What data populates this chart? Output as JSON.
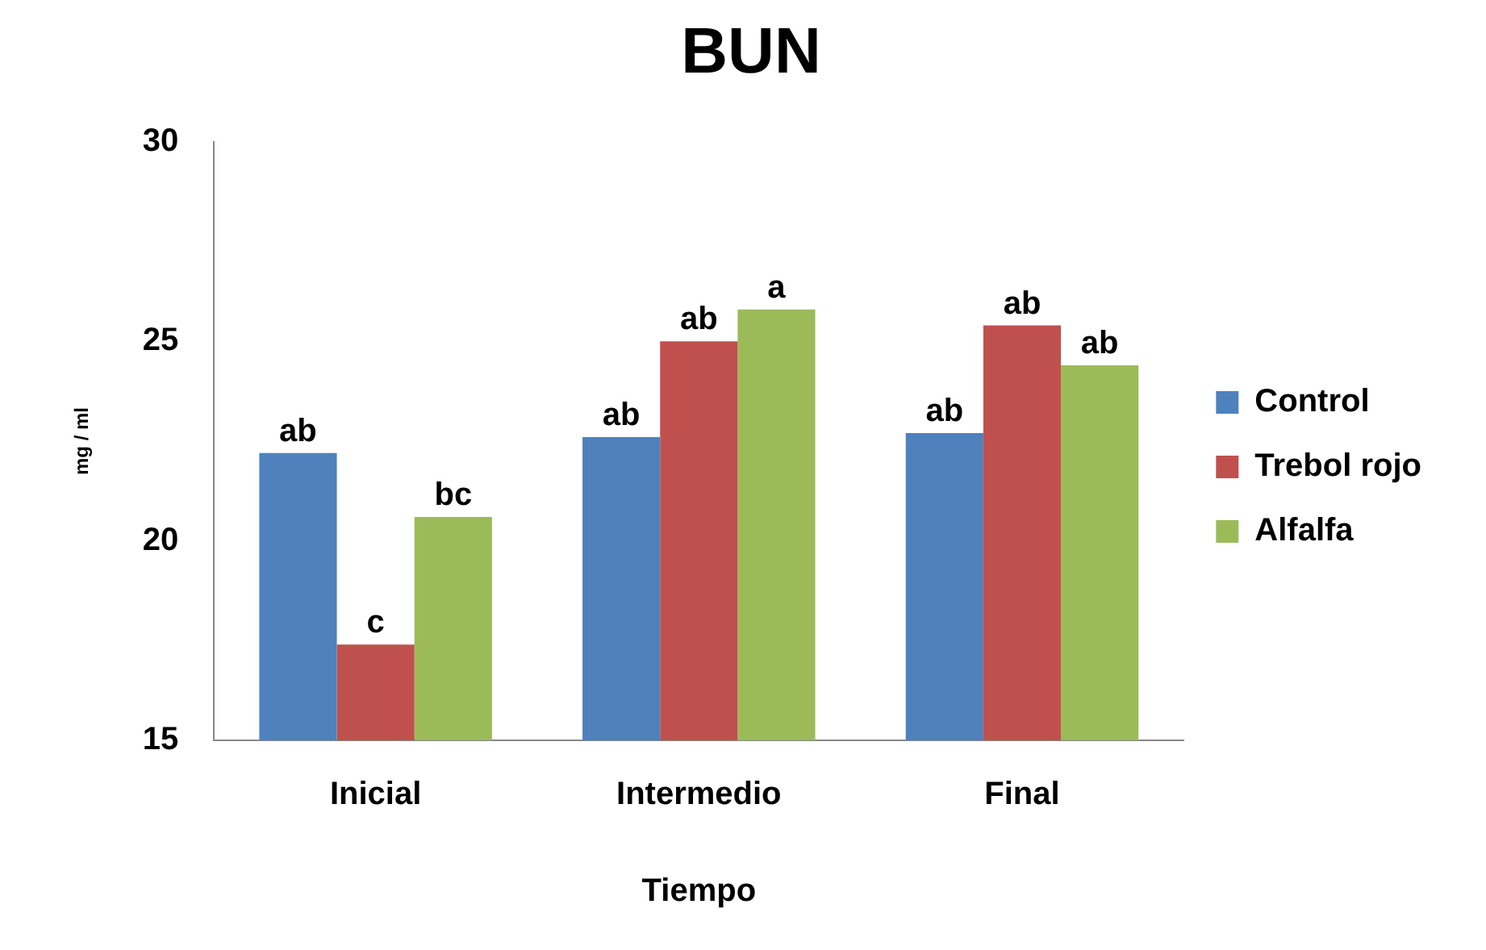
{
  "chart_data": {
    "type": "bar",
    "title": "BUN",
    "xlabel": "Tiempo",
    "ylabel": "mg / ml",
    "categories": [
      "Inicial",
      "Intermedio",
      "Final"
    ],
    "series": [
      {
        "name": "Control",
        "color": "#4f81bd",
        "values": [
          22.2,
          22.6,
          22.7
        ],
        "value_labels": [
          "ab",
          "ab",
          "ab"
        ]
      },
      {
        "name": "Trebol rojo",
        "color": "#c0504d",
        "values": [
          17.4,
          25.0,
          25.4
        ],
        "value_labels": [
          "c",
          "ab",
          "ab"
        ]
      },
      {
        "name": "Alfalfa",
        "color": "#9bbb59",
        "values": [
          20.6,
          25.8,
          24.4
        ],
        "value_labels": [
          "bc",
          "a",
          "ab"
        ]
      }
    ],
    "ylim": [
      15,
      30
    ],
    "yticks": [
      15,
      20,
      25,
      30
    ],
    "grid": false,
    "legend": "right"
  }
}
